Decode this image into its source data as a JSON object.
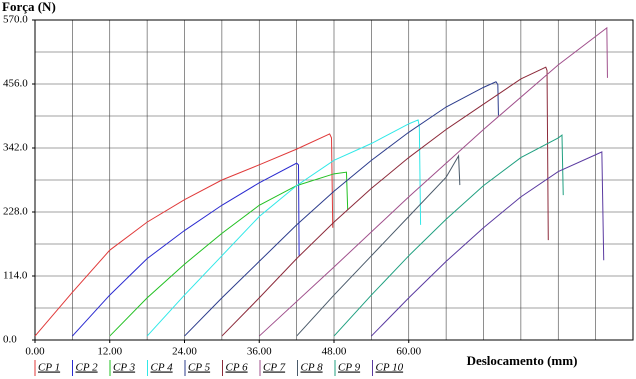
{
  "chart_data": {
    "type": "line",
    "y_label": "Força (N)",
    "x_label": "Deslocamento (mm)",
    "xlim": [
      0,
      96
    ],
    "ylim": [
      0,
      570
    ],
    "xticks": [
      {
        "value": 0,
        "label": "0.00"
      },
      {
        "value": 12,
        "label": "12.00"
      },
      {
        "value": 24,
        "label": "24.00"
      },
      {
        "value": 36,
        "label": "36.00"
      },
      {
        "value": 48,
        "label": "48.00"
      },
      {
        "value": 60,
        "label": "60.00"
      }
    ],
    "yticks": [
      {
        "value": 0,
        "label": "0.0"
      },
      {
        "value": 114,
        "label": "114.0"
      },
      {
        "value": 228,
        "label": "228.0"
      },
      {
        "value": 342,
        "label": "342.0"
      },
      {
        "value": 456,
        "label": "456.0"
      },
      {
        "value": 570,
        "label": "570.0"
      }
    ],
    "xgrid": [
      0,
      6,
      12,
      18,
      24,
      30,
      36,
      42,
      48,
      54,
      60,
      66,
      72,
      78,
      84,
      90,
      96
    ],
    "ygrid": [
      0,
      57,
      114,
      171,
      228,
      285,
      342,
      399,
      456,
      513,
      570
    ],
    "grid": true,
    "series": [
      {
        "name": "CP 1",
        "color": "#e03a3a",
        "x": [
          0,
          6,
          12,
          18,
          24,
          30,
          36,
          42,
          47.3,
          47.6,
          47.8
        ],
        "values": [
          7,
          85,
          160,
          210,
          250,
          285,
          312,
          340,
          367,
          360,
          200
        ]
      },
      {
        "name": "CP 2",
        "color": "#2a2ad0",
        "x": [
          6,
          12,
          18,
          24,
          30,
          36,
          42,
          42.3,
          42.4
        ],
        "values": [
          7,
          80,
          145,
          195,
          240,
          280,
          315,
          312,
          150
        ]
      },
      {
        "name": "CP 3",
        "color": "#22c022",
        "x": [
          12,
          18,
          24,
          30,
          36,
          42,
          48,
          50,
          50.2
        ],
        "values": [
          7,
          75,
          135,
          190,
          240,
          275,
          296,
          299,
          232
        ]
      },
      {
        "name": "CP 4",
        "color": "#30e8e8",
        "x": [
          18,
          24,
          30,
          36,
          42,
          48,
          54,
          60,
          61.5,
          61.7,
          61.9
        ],
        "values": [
          7,
          80,
          150,
          220,
          275,
          320,
          350,
          385,
          392,
          380,
          205
        ]
      },
      {
        "name": "CP 5",
        "color": "#2c3c8c",
        "x": [
          24,
          30,
          36,
          42,
          48,
          54,
          60,
          66,
          72,
          74,
          74.3,
          74.4
        ],
        "values": [
          7,
          75,
          140,
          205,
          265,
          320,
          370,
          415,
          450,
          460,
          455,
          400
        ]
      },
      {
        "name": "CP 6",
        "color": "#8c2a3a",
        "x": [
          30,
          36,
          42,
          48,
          54,
          60,
          66,
          72,
          78,
          82,
          82.2,
          82.4
        ],
        "values": [
          7,
          75,
          145,
          210,
          270,
          325,
          375,
          420,
          465,
          486,
          480,
          178
        ]
      },
      {
        "name": "CP 7",
        "color": "#a0508c",
        "x": [
          36,
          48,
          60,
          72,
          84,
          91.8,
          91.9
        ],
        "values": [
          7,
          130,
          255,
          375,
          490,
          556,
          467
        ]
      },
      {
        "name": "CP 8",
        "color": "#4a5a6a",
        "x": [
          42,
          48,
          54,
          60,
          66,
          68,
          68.2
        ],
        "values": [
          7,
          80,
          150,
          220,
          290,
          328,
          276
        ]
      },
      {
        "name": "CP 9",
        "color": "#20a080",
        "x": [
          48,
          54,
          60,
          66,
          72,
          78,
          84,
          84.6,
          84.8
        ],
        "values": [
          7,
          80,
          150,
          215,
          275,
          325,
          360,
          365,
          258
        ]
      },
      {
        "name": "CP 10",
        "color": "#5a3aa0",
        "x": [
          54,
          60,
          66,
          72,
          78,
          84,
          90,
          91,
          91.3
        ],
        "values": [
          7,
          75,
          140,
          200,
          255,
          300,
          330,
          335,
          142
        ]
      }
    ]
  }
}
